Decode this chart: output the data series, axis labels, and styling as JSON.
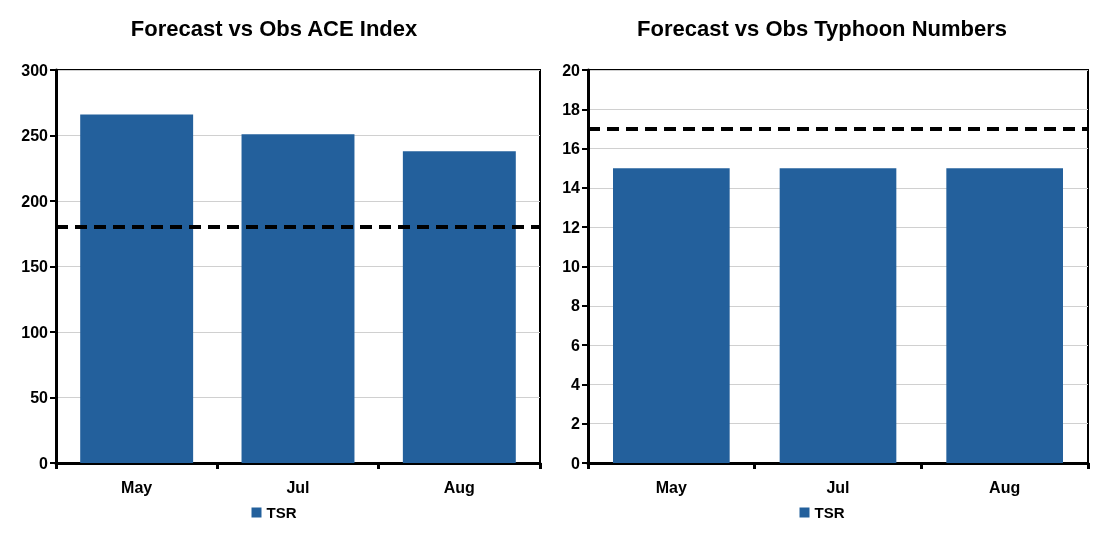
{
  "chart_data": [
    {
      "type": "bar",
      "title": "Forecast vs Obs ACE Index",
      "categories": [
        "May",
        "Jul",
        "Aug"
      ],
      "series": [
        {
          "name": "TSR",
          "color": "#23609c",
          "values": [
            266,
            251,
            238
          ]
        }
      ],
      "ylim": [
        0,
        300
      ],
      "yticks": [
        0,
        50,
        100,
        150,
        200,
        250,
        300
      ],
      "grid": "y",
      "legend": "bottom",
      "ref_lines": [
        {
          "axis": "y",
          "value": 180,
          "color": "#000000",
          "line_style": "dashed"
        }
      ]
    },
    {
      "type": "bar",
      "title": "Forecast vs Obs Typhoon Numbers",
      "categories": [
        "May",
        "Jul",
        "Aug"
      ],
      "series": [
        {
          "name": "TSR",
          "color": "#23609c",
          "values": [
            15,
            15,
            15
          ]
        }
      ],
      "ylim": [
        0,
        20
      ],
      "yticks": [
        0,
        2,
        4,
        6,
        8,
        10,
        12,
        14,
        16,
        18,
        20
      ],
      "grid": "y",
      "legend": "bottom",
      "ref_lines": [
        {
          "axis": "y",
          "value": 17,
          "color": "#000000",
          "line_style": "dashed"
        }
      ]
    }
  ]
}
